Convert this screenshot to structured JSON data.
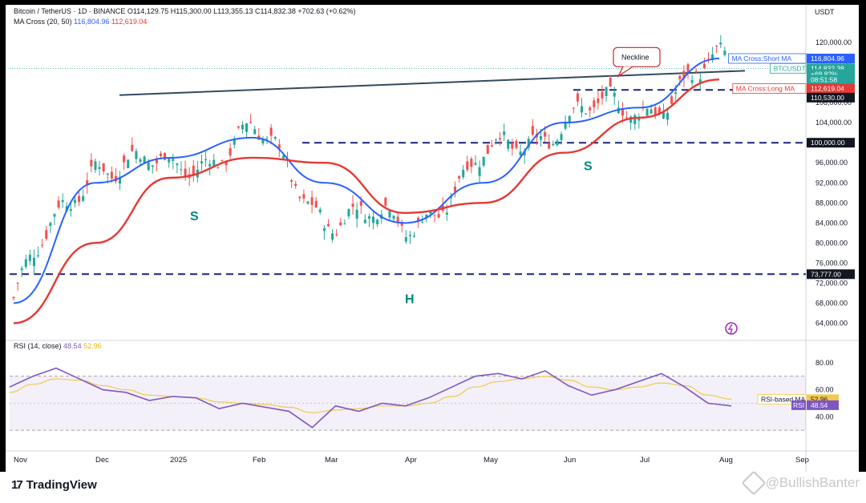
{
  "header": {
    "symbol_line": "Bitcoin / TetherUS · 1D · BINANCE",
    "ohlc_line": "O114,129.75 H115,300.00 L113,355.13 C114,832.38 +702.63 (+0.62%)",
    "ma_label": "MA Cross (20, 50)",
    "ma_short": "116,804.96",
    "ma_long": "112,619.04"
  },
  "price_axis": {
    "unit": "USDT",
    "ticks": [
      "120,000.00",
      "116,000.00",
      "112,000.00",
      "108,000.00",
      "104,000.00",
      "100,000.00",
      "96,000.00",
      "92,000.00",
      "88,000.00",
      "84,000.00",
      "80,000.00",
      "76,000.00",
      "72,000.00",
      "68,000.00",
      "64,000.00"
    ],
    "tick_values": [
      120000,
      116000,
      112000,
      108000,
      104000,
      100000,
      96000,
      92000,
      88000,
      84000,
      80000,
      76000,
      72000,
      68000,
      64000
    ]
  },
  "badges": [
    {
      "label": "MA Cross:Short MA",
      "value": "116,804.96",
      "price": 116805,
      "color": "#2962ff"
    },
    {
      "label": "BTCUSDT",
      "value": "114,832.38",
      "price": 114832,
      "color": "#26a69a"
    },
    {
      "label": "",
      "value": "+68.82%",
      "price": 113700,
      "color": "#26a69a"
    },
    {
      "label": "",
      "value": "08:51:58",
      "price": 112600,
      "color": "#26a69a"
    },
    {
      "label": "MA Cross:Long MA",
      "value": "112,619.04",
      "price": 110800,
      "color": "#e53935"
    },
    {
      "label": "",
      "value": "110,530.00",
      "price": 109000,
      "color": "#131722"
    },
    {
      "label": "",
      "value": "100,000.00",
      "price": 100000,
      "color": "#131722"
    },
    {
      "label": "",
      "value": "73,777.00",
      "price": 73777,
      "color": "#131722"
    }
  ],
  "annotations": {
    "neckline": "Neckline",
    "left_s": "S",
    "head": "H",
    "right_s": "S"
  },
  "rsi": {
    "label": "RSI (14, close)",
    "value": "48.54",
    "ma_value": "52.96",
    "ma_label": "RSI-based MA",
    "rsi_tag": "RSI",
    "ticks": [
      "80.00",
      "60.00",
      "40.00"
    ],
    "tick_values": [
      80,
      60,
      40
    ],
    "band": [
      70,
      30
    ]
  },
  "x_axis": {
    "labels": [
      "Nov",
      "Dec",
      "2025",
      "Feb",
      "Mar",
      "Apr",
      "May",
      "Jun",
      "Jul",
      "Aug",
      "Sep"
    ]
  },
  "footer": {
    "brand": "TradingView",
    "watermark": "@BullishBanter"
  },
  "chart_data": {
    "type": "line",
    "title": "Bitcoin / TetherUS · 1D · BINANCE",
    "xlabel": "",
    "ylabel": "USDT",
    "ylim": [
      62000,
      124000
    ],
    "x": [
      "Nov",
      "Dec",
      "2025",
      "Feb",
      "Mar",
      "Apr",
      "May",
      "Jun",
      "Jul",
      "Aug"
    ],
    "series": [
      {
        "name": "",
        "values": [
          69000,
          97000,
          94000,
          102000,
          86000,
          83000,
          96000,
          105000,
          107000,
          115000
        ]
      },
      {
        "name": "MA Cross:Short MA",
        "values": [
          68000,
          92000,
          97000,
          101000,
          92000,
          84000,
          92000,
          104000,
          107000,
          116800
        ]
      },
      {
        "name": "MA Cross:Long MA",
        "values": [
          64000,
          80000,
          93000,
          97000,
          96000,
          86000,
          88000,
          98000,
          105000,
          112600
        ]
      }
    ],
    "levels": [
      110530,
      100000,
      73777
    ],
    "neckline": [
      [
        "Dec",
        109500
      ],
      [
        "Aug",
        115000
      ]
    ],
    "rsi": {
      "ylim": [
        20,
        90
      ],
      "values": [
        62,
        70,
        76,
        68,
        60,
        58,
        52,
        55,
        54,
        46,
        50,
        47,
        44,
        32,
        48,
        44,
        50,
        48,
        54,
        62,
        70,
        72,
        68,
        74,
        63,
        56,
        60,
        66,
        72,
        62,
        50,
        48
      ],
      "ma_values": [
        58,
        64,
        68,
        67,
        63,
        60,
        56,
        55,
        54,
        51,
        50,
        49,
        47,
        43,
        45,
        46,
        48,
        48,
        50,
        55,
        62,
        66,
        68,
        70,
        67,
        62,
        60,
        62,
        65,
        63,
        56,
        53
      ]
    }
  }
}
